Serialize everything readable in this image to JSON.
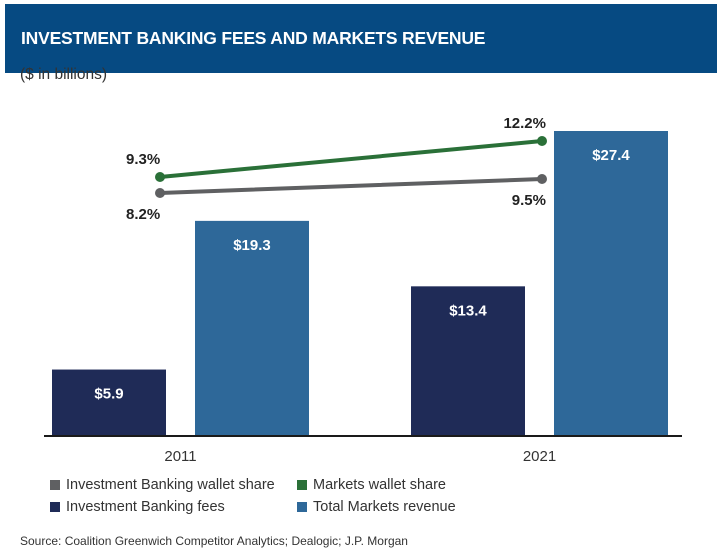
{
  "header": {
    "title": "INVESTMENT BANKING FEES AND MARKETS REVENUE"
  },
  "subtitle": "($ in billions)",
  "source": "Source: Coalition Greenwich Competitor Analytics; Dealogic; J.P. Morgan",
  "chart_data": {
    "type": "bar",
    "title": "INVESTMENT BANKING FEES AND MARKETS REVENUE",
    "ylabel": "($ in billions)",
    "xlabel": "",
    "categories": [
      "2011",
      "2021"
    ],
    "ylim": [
      0,
      27.4
    ],
    "grid": false,
    "legend_position": "bottom-left",
    "series": [
      {
        "name": "Investment Banking fees",
        "kind": "bar",
        "values": [
          5.9,
          13.4
        ],
        "labels": [
          "$5.9",
          "$13.4"
        ],
        "color": "#1f2b57"
      },
      {
        "name": "Total Markets revenue",
        "kind": "bar",
        "values": [
          19.3,
          27.4
        ],
        "labels": [
          "$19.3",
          "$27.4"
        ],
        "color": "#2e6899"
      },
      {
        "name": "Investment Banking wallet share",
        "kind": "line",
        "values": [
          8.2,
          9.5
        ],
        "labels": [
          "8.2%",
          "9.5%"
        ],
        "unit": "%",
        "color": "#5f6062"
      },
      {
        "name": "Markets wallet share",
        "kind": "line",
        "values": [
          9.3,
          12.2
        ],
        "labels": [
          "9.3%",
          "12.2%"
        ],
        "unit": "%",
        "color": "#2a7038"
      }
    ],
    "legend": [
      {
        "label": "Investment Banking wallet share",
        "color": "#5f6062"
      },
      {
        "label": "Markets wallet share",
        "color": "#2a7038"
      },
      {
        "label": "Investment Banking fees",
        "color": "#1f2b57"
      },
      {
        "label": "Total Markets revenue",
        "color": "#2e6899"
      }
    ]
  }
}
